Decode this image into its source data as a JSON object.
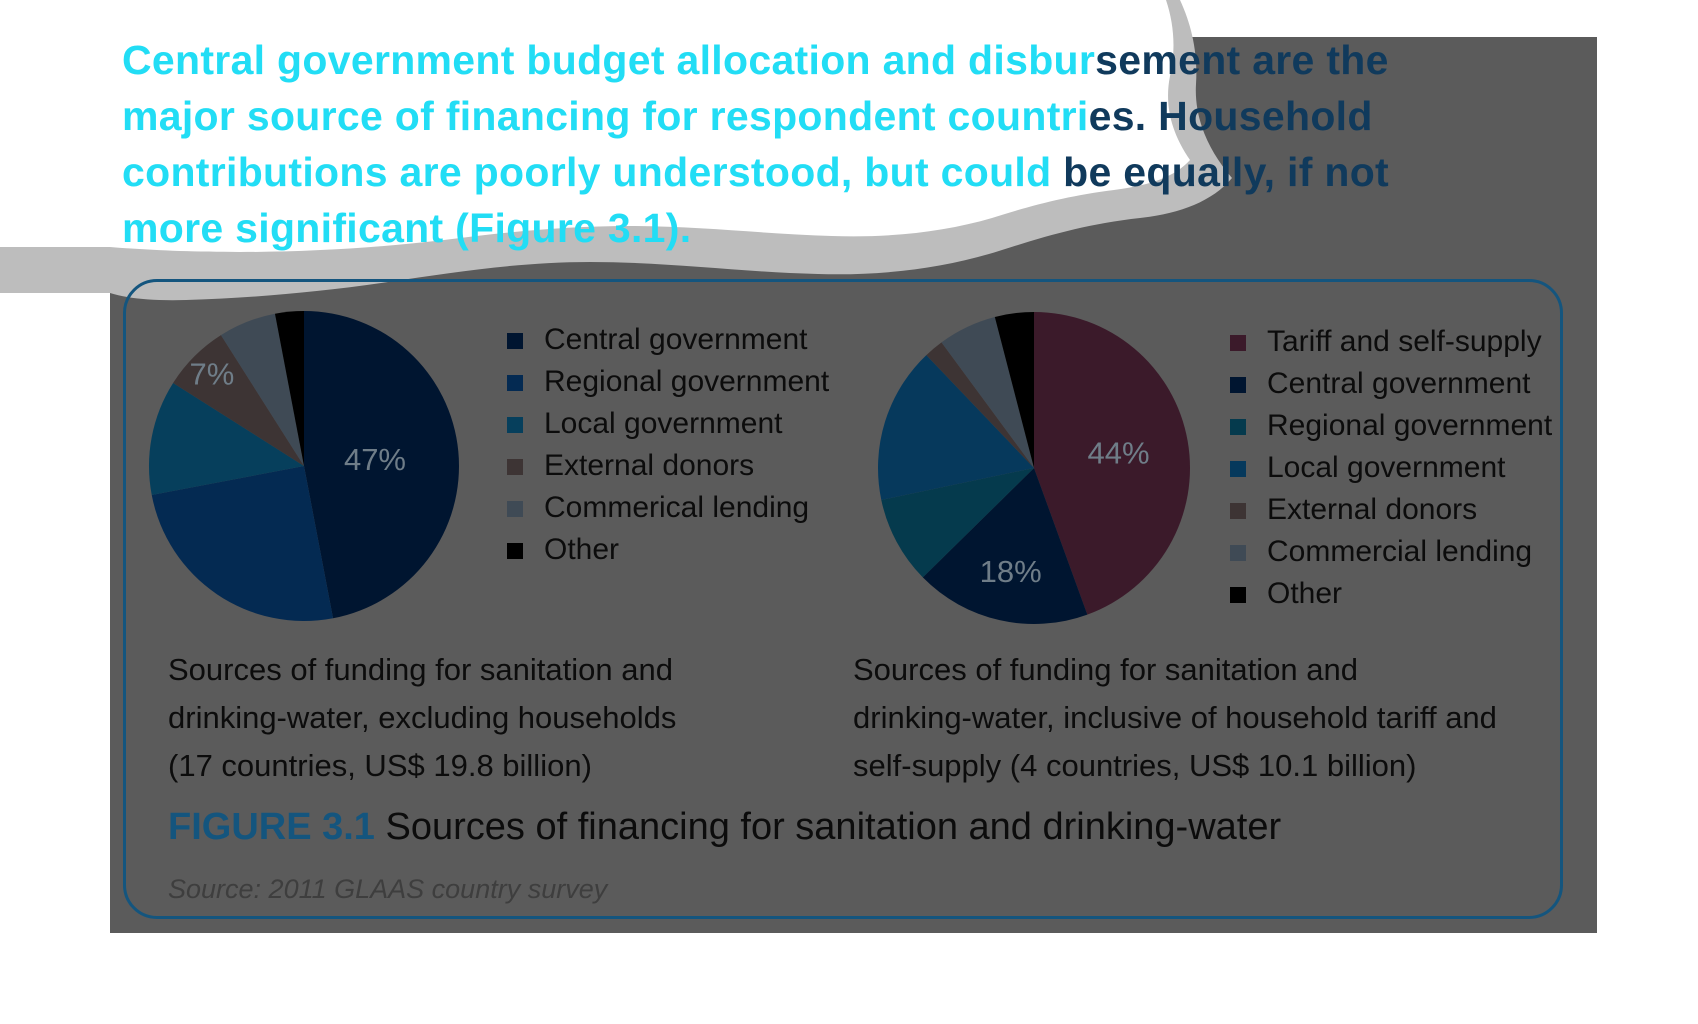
{
  "headline": {
    "lines": [
      [
        "Central government budget allocation and disbur",
        "sement are the"
      ],
      [
        "major source of financing for respondent countri",
        "es. Household"
      ],
      [
        "contributions are poorly understood, but could ",
        "be equally, if not"
      ],
      [
        "more significant (Figure 3.1).",
        ""
      ]
    ]
  },
  "figure": {
    "label": "FIGURE 3.1",
    "title": "Sources of financing for sanitation and drinking-water",
    "source": "Source: 2011 GLAAS country survey"
  },
  "colors": {
    "central_government": "#001530",
    "regional_government": "#042a52",
    "local_government": "#063f5c",
    "local_government_right": "#06395c",
    "regional_government_right": "#053a4d",
    "external_donors": "#3d3434",
    "commercial_lending": "#3f4a55",
    "other": "#000000",
    "tariff_self_supply": "#3b1a2a"
  },
  "chart_data": [
    {
      "type": "pie",
      "caption_lines": [
        "Sources of funding for sanitation and",
        "drinking-water, excluding households",
        "(17 countries, US$ 19.8 billion)"
      ],
      "legend_position": "right",
      "slices": [
        {
          "label": "Central government",
          "value": 47,
          "value_label": "47%",
          "color": "#001530"
        },
        {
          "label": "Regional government",
          "value": 25,
          "value_label": "",
          "color": "#042a52"
        },
        {
          "label": "Local government",
          "value": 12,
          "value_label": "",
          "color": "#063f5c"
        },
        {
          "label": "External donors",
          "value": 7,
          "value_label": "7%",
          "color": "#3d3434"
        },
        {
          "label": "Commerical lending",
          "value": 6,
          "value_label": "",
          "color": "#3f4a55"
        },
        {
          "label": "Other",
          "value": 3,
          "value_label": "",
          "color": "#000000"
        }
      ]
    },
    {
      "type": "pie",
      "caption_lines": [
        "Sources of funding for sanitation and",
        "drinking-water, inclusive of household tariff and",
        "self-supply (4 countries, US$ 10.1 billion)"
      ],
      "legend_position": "right",
      "slices": [
        {
          "label": "Tariff and self-supply",
          "value": 44,
          "value_label": "44%",
          "color": "#3b1a2a"
        },
        {
          "label": "Central government",
          "value": 18,
          "value_label": "18%",
          "color": "#001530"
        },
        {
          "label": "Regional government",
          "value": 9,
          "value_label": "",
          "color": "#053a4d"
        },
        {
          "label": "Local government",
          "value": 16,
          "value_label": "",
          "color": "#06395c"
        },
        {
          "label": "External donors",
          "value": 2,
          "value_label": "",
          "color": "#3d3434"
        },
        {
          "label": "Commercial lending",
          "value": 6,
          "value_label": "",
          "color": "#3f4a55"
        },
        {
          "label": "Other",
          "value": 4,
          "value_label": "",
          "color": "#000000"
        }
      ]
    }
  ]
}
